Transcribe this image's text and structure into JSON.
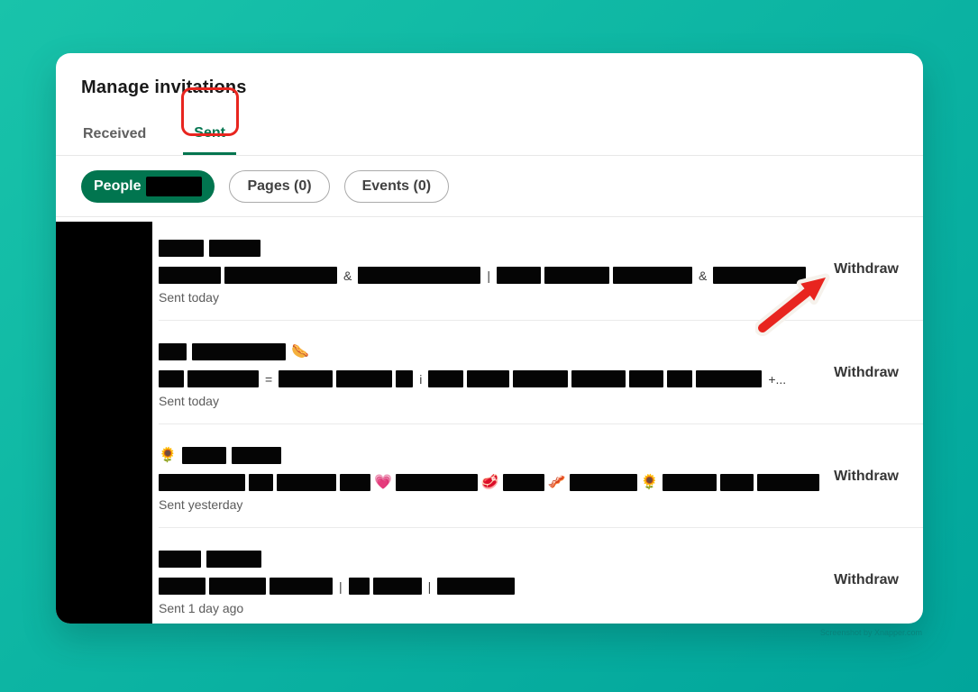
{
  "header": {
    "title": "Manage invitations"
  },
  "tabs": {
    "received": "Received",
    "sent": "Sent"
  },
  "filters": {
    "people_label": "People",
    "pages_label": "Pages (0)",
    "events_label": "Events (0)"
  },
  "annotations": {
    "highlight_color": "#e8251f",
    "highlighted_tab": "Sent",
    "arrow_points_to": "Withdraw"
  },
  "watermark": "Screenshot by Xnapper.com",
  "rows": [
    {
      "name": [
        {
          "block": 50
        },
        {
          "block": 57
        }
      ],
      "headline": [
        {
          "block": 69
        },
        {
          "block": 125
        },
        {
          "text": "&"
        },
        {
          "block": 136
        },
        {
          "text": "|"
        },
        {
          "block": 49
        },
        {
          "block": 72
        },
        {
          "block": 88
        },
        {
          "text": "&"
        },
        {
          "block": 103
        }
      ],
      "time": "Sent today",
      "action": "Withdraw"
    },
    {
      "name": [
        {
          "block": 31
        },
        {
          "block": 104
        },
        {
          "emoji": "🌭"
        }
      ],
      "headline": [
        {
          "block": 28
        },
        {
          "block": 79
        },
        {
          "text": "="
        },
        {
          "block": 60
        },
        {
          "block": 62
        },
        {
          "block": 19
        },
        {
          "text": "i"
        },
        {
          "block": 39
        },
        {
          "block": 47
        },
        {
          "block": 61
        },
        {
          "block": 60
        },
        {
          "block": 38
        },
        {
          "block": 28
        },
        {
          "block": 73
        },
        {
          "text": "+..."
        }
      ],
      "time": "Sent today",
      "action": "Withdraw"
    },
    {
      "name": [
        {
          "emoji": "🌻"
        },
        {
          "block": 49
        },
        {
          "block": 55
        }
      ],
      "headline": [
        {
          "block": 96
        },
        {
          "block": 27
        },
        {
          "block": 66
        },
        {
          "block": 34
        },
        {
          "emoji": "💗"
        },
        {
          "block": 91
        },
        {
          "emoji": "🥩"
        },
        {
          "block": 46
        },
        {
          "emoji": "🥓"
        },
        {
          "block": 75
        },
        {
          "emoji": "🌻"
        },
        {
          "block": 60
        },
        {
          "block": 37
        },
        {
          "block": 69
        }
      ],
      "time": "Sent yesterday",
      "action": "Withdraw"
    },
    {
      "name": [
        {
          "block": 47
        },
        {
          "block": 61
        }
      ],
      "headline": [
        {
          "block": 52
        },
        {
          "block": 63
        },
        {
          "block": 70
        },
        {
          "text": "|"
        },
        {
          "block": 23
        },
        {
          "block": 54
        },
        {
          "text": "|"
        },
        {
          "block": 86
        }
      ],
      "time": "Sent 1 day ago",
      "action": "Withdraw"
    }
  ]
}
